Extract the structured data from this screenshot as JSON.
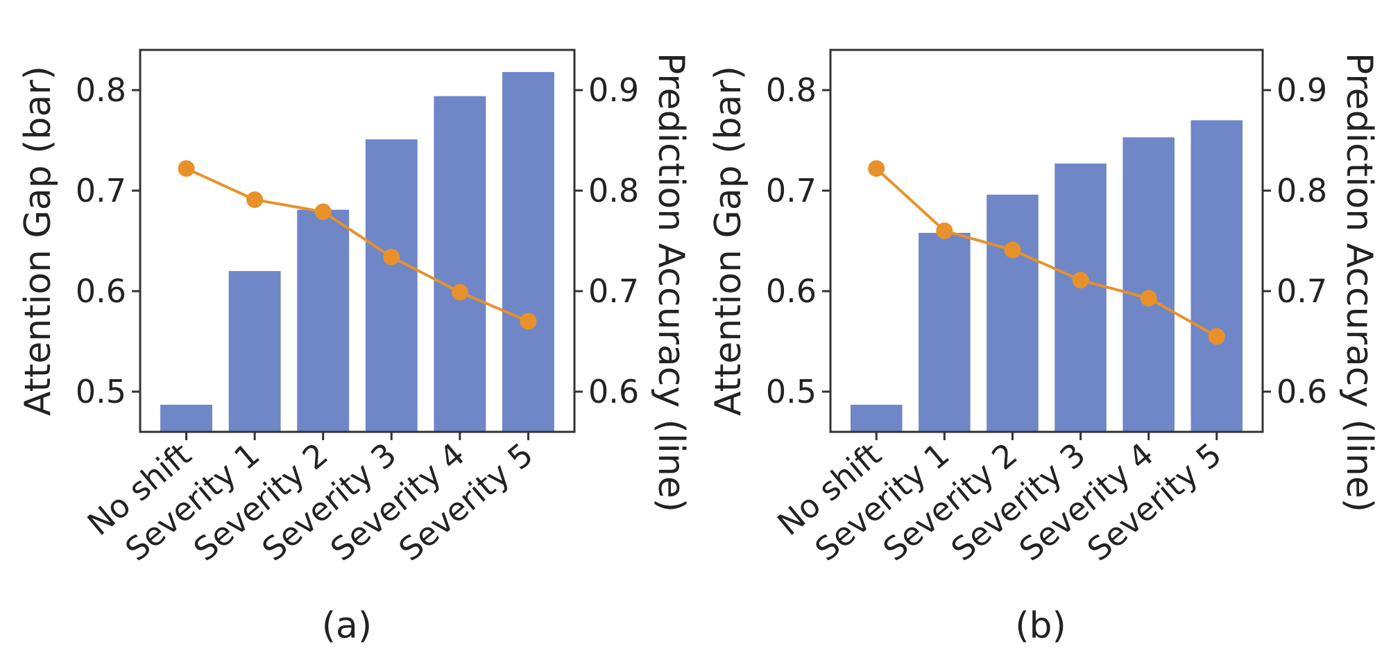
{
  "colors": {
    "bar": "#6f87c7",
    "line": "#e8912b",
    "axis": "#333333",
    "text": "#222222"
  },
  "chart_data": [
    {
      "type": "bar",
      "panel_label": "(a)",
      "categories": [
        "No shift",
        "Severity 1",
        "Severity 2",
        "Severity 3",
        "Severity 4",
        "Severity 5"
      ],
      "ylabel": "Attention Gap (bar)",
      "ylabel_right": "Prediction Accuracy (line)",
      "ylim": [
        0.46,
        0.84
      ],
      "yticks": [
        0.5,
        0.6,
        0.7,
        0.8
      ],
      "ylim_right": [
        0.56,
        0.94
      ],
      "yticks_right": [
        0.6,
        0.7,
        0.8,
        0.9
      ],
      "series": [
        {
          "name": "Attention Gap",
          "kind": "bar",
          "axis": "left",
          "values": [
            0.487,
            0.62,
            0.681,
            0.751,
            0.794,
            0.818
          ]
        },
        {
          "name": "Prediction Accuracy",
          "kind": "line",
          "axis": "right",
          "values": [
            0.822,
            0.791,
            0.779,
            0.734,
            0.699,
            0.67
          ]
        }
      ]
    },
    {
      "type": "bar",
      "panel_label": "(b)",
      "categories": [
        "No shift",
        "Severity 1",
        "Severity 2",
        "Severity 3",
        "Severity 4",
        "Severity 5"
      ],
      "ylabel": "Attention Gap (bar)",
      "ylabel_right": "Prediction Accuracy (line)",
      "ylim": [
        0.46,
        0.84
      ],
      "yticks": [
        0.5,
        0.6,
        0.7,
        0.8
      ],
      "ylim_right": [
        0.56,
        0.94
      ],
      "yticks_right": [
        0.6,
        0.7,
        0.8,
        0.9
      ],
      "series": [
        {
          "name": "Attention Gap",
          "kind": "bar",
          "axis": "left",
          "values": [
            0.487,
            0.658,
            0.696,
            0.727,
            0.753,
            0.77
          ]
        },
        {
          "name": "Prediction Accuracy",
          "kind": "line",
          "axis": "right",
          "values": [
            0.822,
            0.76,
            0.741,
            0.711,
            0.693,
            0.655
          ]
        }
      ]
    }
  ]
}
